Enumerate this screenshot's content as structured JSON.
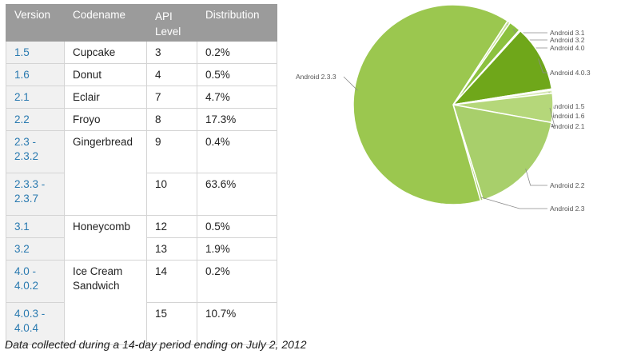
{
  "table": {
    "headers": {
      "version": "Version",
      "codename": "Codename",
      "api_line1": "API",
      "api_line2": "Level",
      "distribution": "Distribution"
    },
    "rows": [
      {
        "version": "1.5",
        "codename": "Cupcake",
        "api": "3",
        "dist": "0.2%"
      },
      {
        "version": "1.6",
        "codename": "Donut",
        "api": "4",
        "dist": "0.5%"
      },
      {
        "version": "2.1",
        "codename": "Eclair",
        "api": "7",
        "dist": "4.7%"
      },
      {
        "version": "2.2",
        "codename": "Froyo",
        "api": "8",
        "dist": "17.3%"
      },
      {
        "version_line1": "2.3 -",
        "version_line2": "2.3.2",
        "codename": "Gingerbread",
        "api": "9",
        "dist": "0.4%"
      },
      {
        "version_line1": "2.3.3 -",
        "version_line2": "2.3.7",
        "api": "10",
        "dist": "63.6%"
      },
      {
        "version": "3.1",
        "codename": "Honeycomb",
        "api": "12",
        "dist": "0.5%"
      },
      {
        "version": "3.2",
        "api": "13",
        "dist": "1.9%"
      },
      {
        "version_line1": "4.0 -",
        "version_line2": "4.0.2",
        "codename_line1": "Ice Cream",
        "codename_line2": "Sandwich",
        "api": "14",
        "dist": "0.2%"
      },
      {
        "version_line1": "4.0.3 -",
        "version_line2": "4.0.4",
        "api": "15",
        "dist": "10.7%"
      }
    ]
  },
  "caption": "Data collected during a 14-day period ending on July 2, 2012",
  "chart_data": {
    "type": "pie",
    "slices": [
      {
        "label": "Android 3.1",
        "value": 0.5,
        "color": "#c9e09a"
      },
      {
        "label": "Android 3.2",
        "value": 1.9,
        "color": "#8cc13f"
      },
      {
        "label": "Android 4.0",
        "value": 0.2,
        "color": "#8cc13f"
      },
      {
        "label": "Android 4.0.3",
        "value": 10.7,
        "color": "#6fa71a"
      },
      {
        "label": "Android 1.5",
        "value": 0.2,
        "color": "#d6e8b3"
      },
      {
        "label": "Android 1.6",
        "value": 0.5,
        "color": "#d6e8b3"
      },
      {
        "label": "Android 2.1",
        "value": 4.7,
        "color": "#b5d77a"
      },
      {
        "label": "Android 2.2",
        "value": 17.3,
        "color": "#a8cf6b"
      },
      {
        "label": "Android 2.3",
        "value": 0.4,
        "color": "#a8cf6b"
      },
      {
        "label": "Android 2.3.3",
        "value": 63.6,
        "color": "#9bc74f"
      }
    ]
  }
}
